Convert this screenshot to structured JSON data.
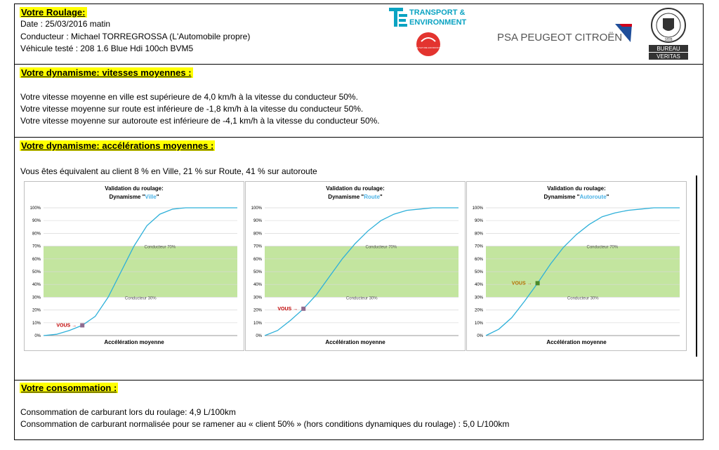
{
  "roulage": {
    "heading": "Votre Roulage:",
    "date": "Date : 25/03/2016 matin",
    "conducteur": "Conducteur :   Michael TORREGROSSA (L'Automobile propre)",
    "vehicule": "Véhicule testé : 208 1.6 Blue Hdi 100ch BVM5"
  },
  "logos": {
    "te_line1": "TRANSPORT &",
    "te_line2": "ENVIRONMENT",
    "te_badge": "FRANCE NATURE ENVIRONNEMENT",
    "psa": "PSA PEUGEOT CITROËN",
    "bv_line1": "BUREAU",
    "bv_line2": "VERITAS",
    "bv_year": "1828",
    "te_color": "#0aa3c2",
    "psa_color": "#1f4e9a",
    "fne_color": "#e3342f"
  },
  "vitesses": {
    "heading": "Votre dynamisme: vitesses moyennes :",
    "lines": [
      "Votre vitesse moyenne en ville est supérieure de 4,0 km/h à la vitesse du conducteur 50%.",
      "Votre vitesse moyenne sur route est inférieure de -1,8 km/h à la vitesse du conducteur 50%.",
      "Votre vitesse moyenne sur autoroute est inférieure de -4,1 km/h à la vitesse du conducteur 50%."
    ]
  },
  "accelerations": {
    "heading": "Votre dynamisme: accélérations moyennes :",
    "summary": "Vous êtes équivalent au client  8 % en Ville,  21 % sur Route,  41 % sur autoroute"
  },
  "consommation": {
    "heading": "Votre consommation :",
    "line1": "Consommation de carburant lors du roulage: 4,9 L/100km",
    "line2": "Consommation de carburant normalisée pour se ramener au « client 50% » (hors conditions dynamiques du roulage) : 5,0 L/100km"
  },
  "chart_data": [
    {
      "type": "line",
      "title_line1": "Validation du roulage:",
      "title_prefix": "Dynamisme \"",
      "title_keyword": "Ville",
      "title_suffix": "\"",
      "xlabel": "Accélération moyenne",
      "y_ticks": [
        "100%",
        "90%",
        "80%",
        "70%",
        "60%",
        "50%",
        "40%",
        "30%",
        "20%",
        "10%",
        "0%"
      ],
      "ylim": [
        0,
        100
      ],
      "band": [
        30,
        70
      ],
      "band_labels": [
        "Conducteur 70%",
        "Conducteur 30%"
      ],
      "grid": true,
      "series": [
        {
          "values": [
            0,
            1,
            4,
            8,
            15,
            30,
            50,
            70,
            86,
            95,
            99,
            100,
            100,
            100,
            100,
            100
          ]
        }
      ],
      "marker": {
        "label": "VOUS",
        "value": 8,
        "index": 3,
        "color": "#8f6b8f",
        "label_color": "#c00000"
      },
      "keyword_color": "#4bb2e5"
    },
    {
      "type": "line",
      "title_line1": "Validation du roulage:",
      "title_prefix": "Dynamisme \"",
      "title_keyword": "Route",
      "title_suffix": "\"",
      "xlabel": "Accélération moyenne",
      "y_ticks": [
        "100%",
        "90%",
        "80%",
        "70%",
        "60%",
        "50%",
        "40%",
        "30%",
        "20%",
        "10%",
        "0%"
      ],
      "ylim": [
        0,
        100
      ],
      "band": [
        30,
        70
      ],
      "band_labels": [
        "Conducteur 70%",
        "Conducteur 30%"
      ],
      "grid": true,
      "series": [
        {
          "values": [
            0,
            4,
            12,
            21,
            32,
            46,
            60,
            72,
            82,
            90,
            95,
            98,
            99,
            100,
            100,
            100
          ]
        }
      ],
      "marker": {
        "label": "VOUS",
        "value": 21,
        "index": 3,
        "color": "#8f6b8f",
        "label_color": "#c00000"
      },
      "keyword_color": "#4bb2e5"
    },
    {
      "type": "line",
      "title_line1": "Validation du roulage:",
      "title_prefix": "Dynamisme \"",
      "title_keyword": "Autoroute",
      "title_suffix": "\"",
      "xlabel": "Accélération moyenne",
      "y_ticks": [
        "100%",
        "90%",
        "80%",
        "70%",
        "60%",
        "50%",
        "40%",
        "30%",
        "20%",
        "10%",
        "0%"
      ],
      "ylim": [
        0,
        100
      ],
      "band": [
        30,
        70
      ],
      "band_labels": [
        "Conducteur 70%",
        "Conducteur 30%"
      ],
      "grid": true,
      "series": [
        {
          "values": [
            0,
            5,
            14,
            27,
            41,
            56,
            69,
            79,
            87,
            93,
            96,
            98,
            99,
            100,
            100,
            100
          ]
        }
      ],
      "marker": {
        "label": "VOUS",
        "value": 41,
        "index": 4,
        "color": "#4a8a2a",
        "label_color": "#b46c00"
      },
      "keyword_color": "#4bb2e5"
    }
  ]
}
